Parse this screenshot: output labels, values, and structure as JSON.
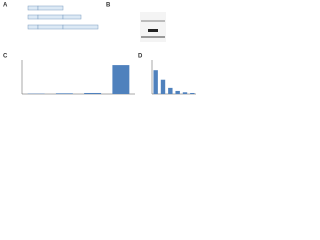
{
  "panel_labels": [
    "A",
    "B",
    "C",
    "D"
  ],
  "chart_data": [
    {
      "type": "bar",
      "categories": [
        null,
        null,
        null,
        null
      ],
      "values": [
        1,
        2,
        3,
        85
      ],
      "color": "#4f81bd",
      "ylim": [
        0,
        100
      ]
    },
    {
      "type": "bar",
      "categories": [
        null,
        null,
        null,
        null,
        null,
        null
      ],
      "values": [
        70,
        42,
        18,
        9,
        5,
        3
      ],
      "color": "#4f81bd",
      "ylim": [
        0,
        100
      ]
    }
  ]
}
